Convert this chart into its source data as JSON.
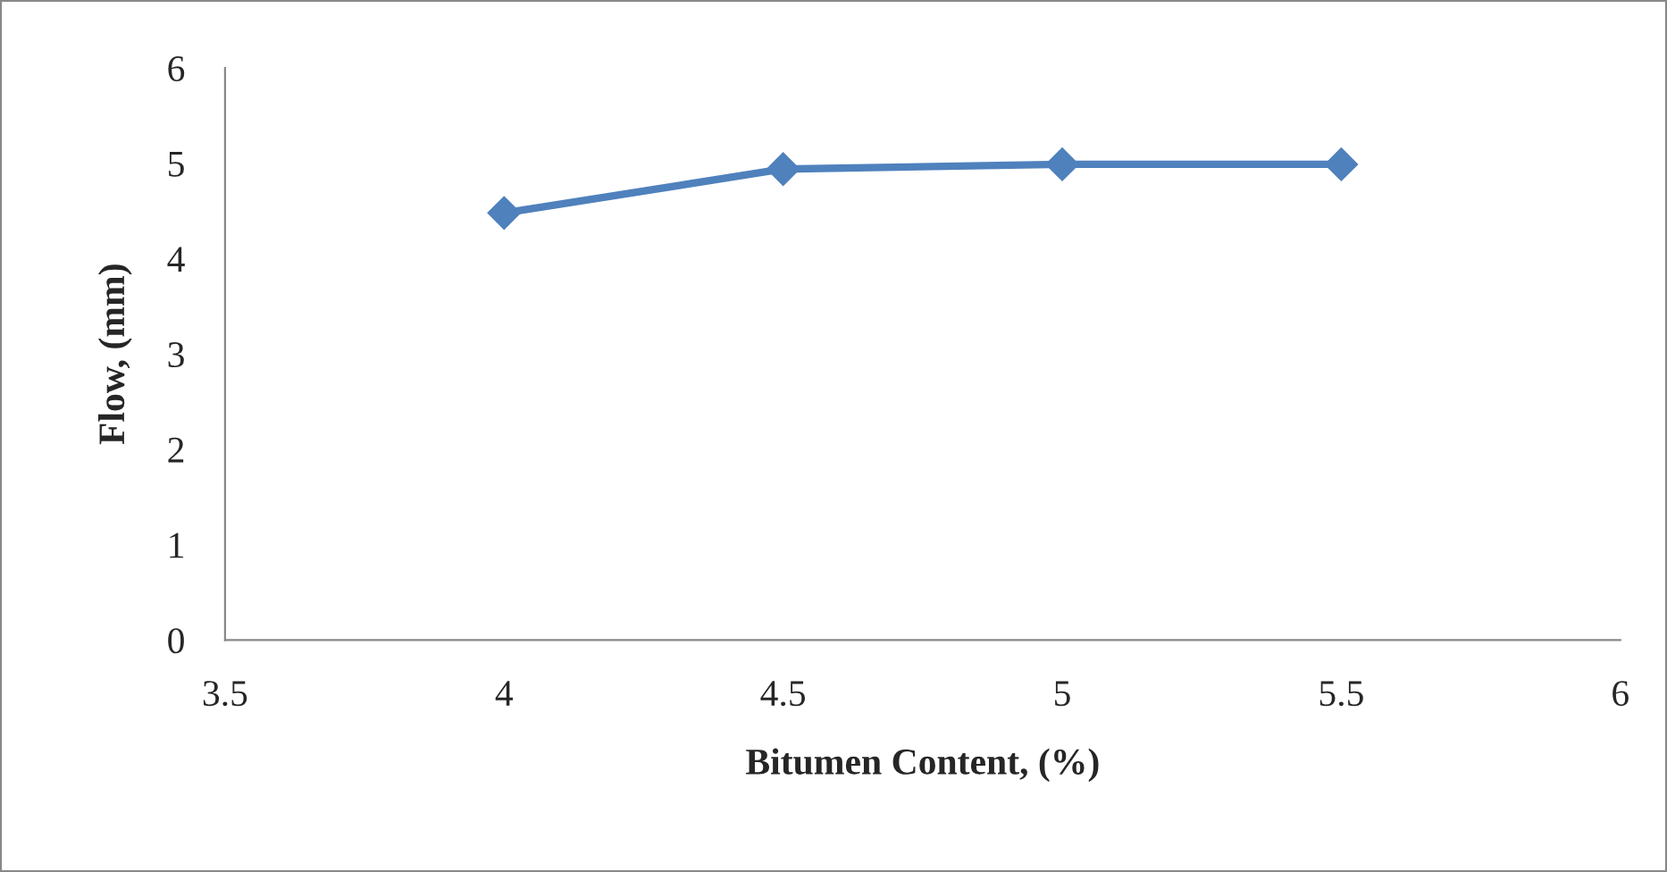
{
  "chart_data": {
    "type": "line",
    "xlabel": "Bitumen Content, (%)",
    "ylabel": "Flow, (mm)",
    "x": [
      4,
      4.5,
      5,
      5.5
    ],
    "series": [
      {
        "color": "#4f81bd",
        "values": [
          4.48,
          4.94,
          4.99,
          4.99
        ]
      }
    ],
    "xlim": [
      3.5,
      6
    ],
    "xticks": [
      3.5,
      4,
      4.5,
      5,
      5.5,
      6
    ],
    "ylim": [
      0,
      6
    ],
    "yticks": [
      0,
      1,
      2,
      3,
      4,
      5,
      6
    ],
    "grid": false,
    "legend": false,
    "marker": "diamond",
    "line_style": "solid"
  }
}
